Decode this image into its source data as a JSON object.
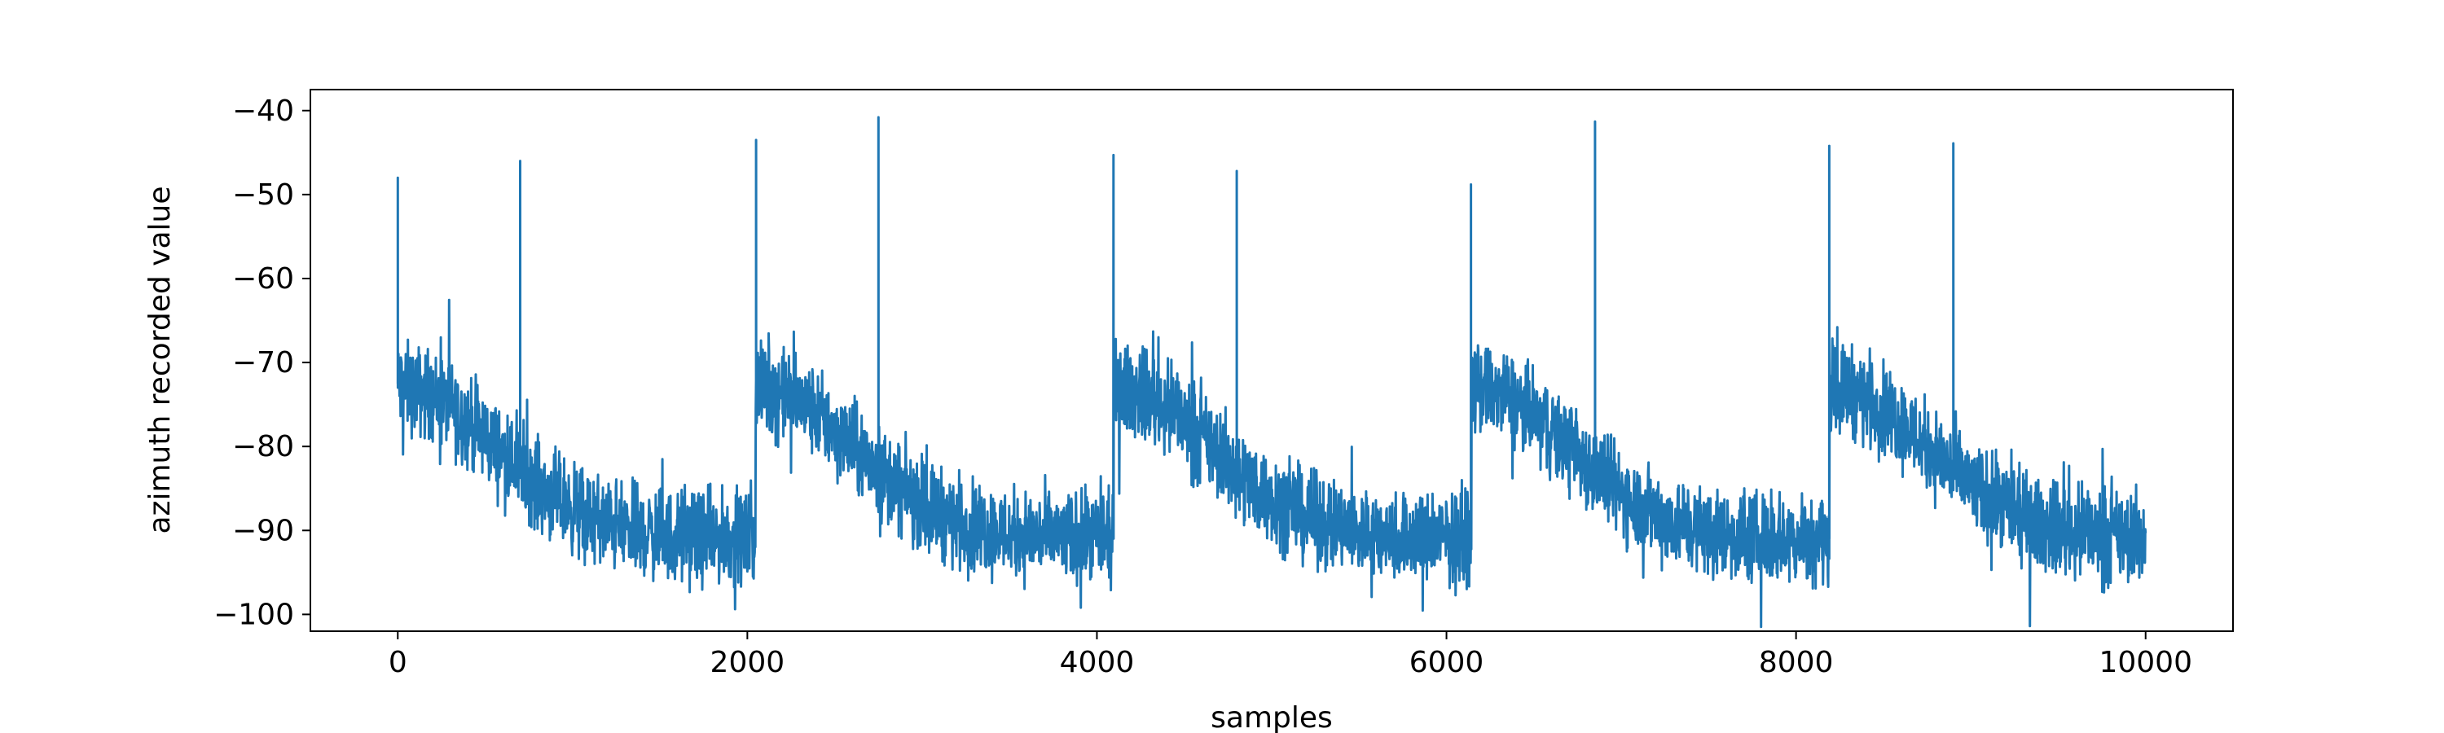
{
  "chart_data": {
    "type": "line",
    "title": "",
    "xlabel": "samples",
    "ylabel": "azimuth recorded value",
    "xlim": [
      -500,
      10500
    ],
    "ylim": [
      -102,
      -37.5
    ],
    "x_ticks": [
      0,
      2000,
      4000,
      6000,
      8000,
      10000
    ],
    "y_ticks": [
      -100,
      -90,
      -80,
      -70,
      -60,
      -50,
      -40
    ],
    "tick_labels_x": [
      "0",
      "2000",
      "4000",
      "6000",
      "8000",
      "10000"
    ],
    "tick_labels_y": [
      "−100",
      "−90",
      "−80",
      "−70",
      "−60",
      "−50",
      "−40"
    ],
    "grid": false,
    "line_color": "#1f77b4",
    "n_samples": 10000,
    "cycle_starts": [
      0,
      2048,
      4096,
      6144,
      8192
    ],
    "cycle_start_level": -73,
    "cycle_floor_level": -91,
    "noise_amplitude": 4,
    "spikes": [
      {
        "x": 0,
        "y": -48
      },
      {
        "x": 700,
        "y": -46
      },
      {
        "x": 2050,
        "y": -43.5
      },
      {
        "x": 2750,
        "y": -40.8
      },
      {
        "x": 4095,
        "y": -45.3
      },
      {
        "x": 4800,
        "y": -47.2
      },
      {
        "x": 6140,
        "y": -48.8
      },
      {
        "x": 6850,
        "y": -41.3
      },
      {
        "x": 8190,
        "y": -44.2
      },
      {
        "x": 8900,
        "y": -43.9
      }
    ]
  }
}
